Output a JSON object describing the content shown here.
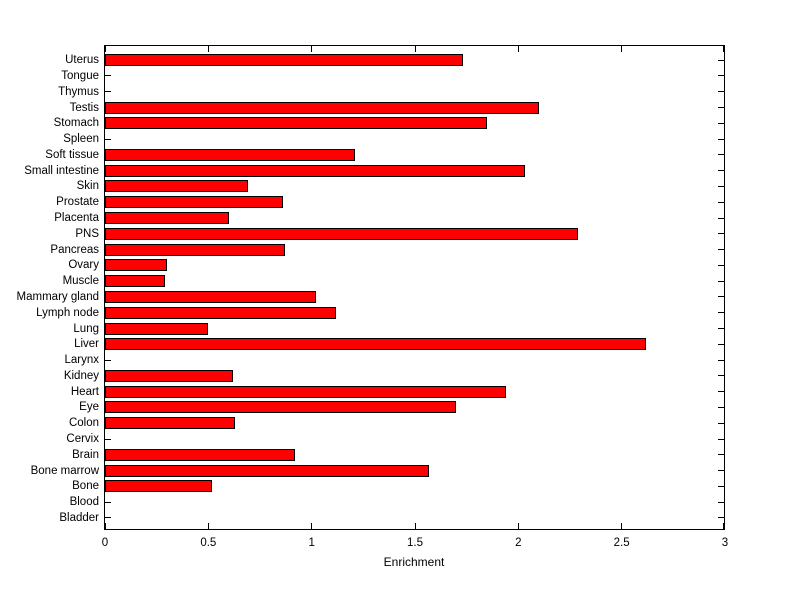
{
  "figure": {
    "background": "#ffffff",
    "plot_background": "#ffffff",
    "frame_color": "#000000"
  },
  "chart_data": {
    "type": "bar",
    "orientation": "horizontal",
    "title": "",
    "xlabel": "Enrichment",
    "ylabel": "",
    "xlim": [
      0,
      3
    ],
    "xticks": [
      0,
      0.5,
      1,
      1.5,
      2,
      2.5,
      3
    ],
    "xtick_labels": [
      "0",
      "0.5",
      "1",
      "1.5",
      "2",
      "2.5",
      "3"
    ],
    "grid": false,
    "legend": null,
    "bar_color": "#ff0000",
    "bar_edge_color": "#000000",
    "categories_top_to_bottom": [
      "Uterus",
      "Tongue",
      "Thymus",
      "Testis",
      "Stomach",
      "Spleen",
      "Soft tissue",
      "Small intestine",
      "Skin",
      "Prostate",
      "Placenta",
      "PNS",
      "Pancreas",
      "Ovary",
      "Muscle",
      "Mammary gland",
      "Lymph node",
      "Lung",
      "Liver",
      "Larynx",
      "Kidney",
      "Heart",
      "Eye",
      "Colon",
      "Cervix",
      "Brain",
      "Bone marrow",
      "Bone",
      "Blood",
      "Bladder"
    ],
    "values": [
      1.73,
      0,
      0,
      2.1,
      1.85,
      0,
      1.21,
      2.03,
      0.69,
      0.86,
      0.6,
      2.29,
      0.87,
      0.3,
      0.29,
      1.02,
      1.12,
      0.5,
      2.62,
      0,
      0.62,
      1.94,
      1.7,
      0.63,
      0,
      0.92,
      1.57,
      0.52,
      0,
      0
    ]
  }
}
